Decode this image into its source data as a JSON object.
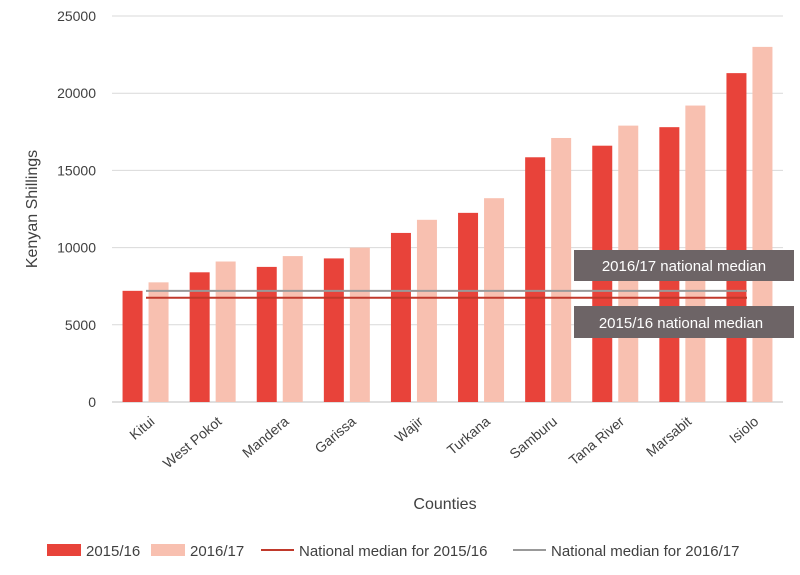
{
  "chart_data": {
    "type": "bar",
    "title": "",
    "xlabel": "Counties",
    "ylabel": "Kenyan Shillings",
    "ylim": [
      0,
      25000
    ],
    "yticks": [
      0,
      5000,
      10000,
      15000,
      20000,
      25000
    ],
    "grid": true,
    "legend_position": "bottom",
    "categories": [
      "Kitui",
      "West Pokot",
      "Mandera",
      "Garissa",
      "Wajir",
      "Turkana",
      "Samburu",
      "Tana River",
      "Marsabit",
      "Isiolo"
    ],
    "series": [
      {
        "name": "2015/16",
        "color": "#e8433a",
        "values": [
          7200,
          8400,
          8750,
          9300,
          10950,
          12250,
          15850,
          16600,
          17800,
          21300
        ]
      },
      {
        "name": "2016/17",
        "color": "#f8c0b0",
        "values": [
          7750,
          9100,
          9450,
          10000,
          11800,
          13200,
          17100,
          17900,
          19200,
          23000
        ]
      }
    ],
    "reference_lines": [
      {
        "name": "National median for 2015/16",
        "value": 6750,
        "color": "#c0392b"
      },
      {
        "name": "National median for 2016/17",
        "value": 7200,
        "color": "#999999"
      }
    ],
    "annotations": [
      {
        "text": "2016/17 national median",
        "fill": "#6d6466"
      },
      {
        "text": "2015/16 national median",
        "fill": "#6d6466"
      }
    ]
  }
}
